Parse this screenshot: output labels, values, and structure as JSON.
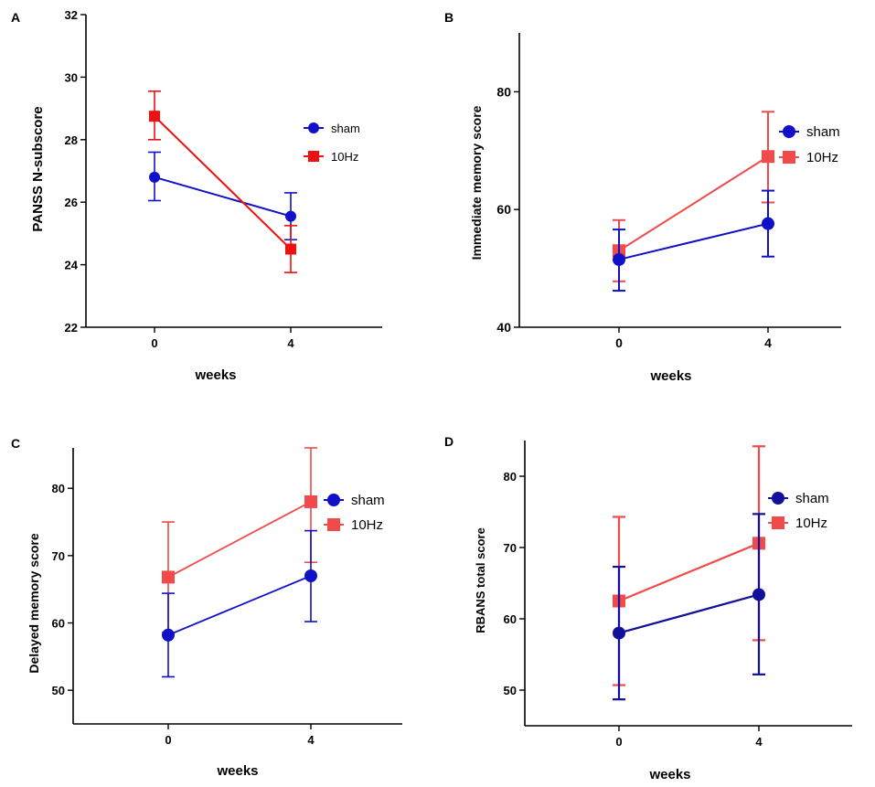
{
  "colors": {
    "sham": "#1010c8",
    "tenhz_A": "#ee1111",
    "tenhz": "#f04a4a",
    "sham_D": "#10109a",
    "axis": "#000000"
  },
  "chart_data": [
    {
      "panel_label": "A",
      "type": "line",
      "xlabel": "weeks",
      "ylabel": "PANSS N-subscore",
      "ylim": [
        22,
        32
      ],
      "yticks": [
        22,
        24,
        26,
        28,
        30,
        32
      ],
      "categories": [
        "0",
        "4"
      ],
      "legend": {
        "position": "right-middle"
      },
      "series": [
        {
          "name": "sham",
          "marker": "circle",
          "values": [
            26.8,
            25.55
          ],
          "err_low": [
            26.05,
            24.8
          ],
          "err_high": [
            27.6,
            26.3
          ]
        },
        {
          "name": "10Hz",
          "marker": "square",
          "values": [
            28.75,
            24.5
          ],
          "err_low": [
            28.0,
            23.75
          ],
          "err_high": [
            29.55,
            25.25
          ]
        }
      ]
    },
    {
      "panel_label": "B",
      "type": "line",
      "xlabel": "weeks",
      "ylabel": "Immediate memory score",
      "ylim": [
        40,
        90
      ],
      "yticks": [
        40,
        60,
        80
      ],
      "categories": [
        "0",
        "4"
      ],
      "legend": {
        "position": "right-upper"
      },
      "series": [
        {
          "name": "sham",
          "marker": "circle",
          "values": [
            51.5,
            57.6
          ],
          "err_low": [
            46.2,
            52.0
          ],
          "err_high": [
            56.6,
            63.2
          ]
        },
        {
          "name": "10Hz",
          "marker": "square",
          "values": [
            53.0,
            69.0
          ],
          "err_low": [
            47.8,
            61.2
          ],
          "err_high": [
            58.2,
            76.6
          ]
        }
      ]
    },
    {
      "panel_label": "C",
      "type": "line",
      "xlabel": "weeks",
      "ylabel": "Delayed memory score",
      "ylim": [
        45,
        86
      ],
      "yticks": [
        50,
        60,
        70,
        80
      ],
      "categories": [
        "0",
        "4"
      ],
      "legend": {
        "position": "right-upper"
      },
      "series": [
        {
          "name": "sham",
          "marker": "circle",
          "values": [
            58.2,
            67.0
          ],
          "err_low": [
            52.0,
            60.2
          ],
          "err_high": [
            64.4,
            73.7
          ]
        },
        {
          "name": "10Hz",
          "marker": "square",
          "values": [
            66.8,
            78.0
          ],
          "err_low": [
            58.6,
            69.0
          ],
          "err_high": [
            75.0,
            86.0
          ]
        }
      ]
    },
    {
      "panel_label": "D",
      "type": "line",
      "xlabel": "weeks",
      "ylabel": "RBANS total score",
      "ylim": [
        45,
        85
      ],
      "yticks": [
        50,
        60,
        70,
        80
      ],
      "categories": [
        "0",
        "4"
      ],
      "legend": {
        "position": "right-upper"
      },
      "series": [
        {
          "name": "sham",
          "marker": "circle",
          "values": [
            58.0,
            63.4
          ],
          "err_low": [
            48.7,
            52.2
          ],
          "err_high": [
            67.3,
            74.7
          ]
        },
        {
          "name": "10Hz",
          "marker": "square",
          "values": [
            62.5,
            70.6
          ],
          "err_low": [
            50.7,
            57.0
          ],
          "err_high": [
            74.3,
            84.2
          ]
        }
      ]
    }
  ]
}
